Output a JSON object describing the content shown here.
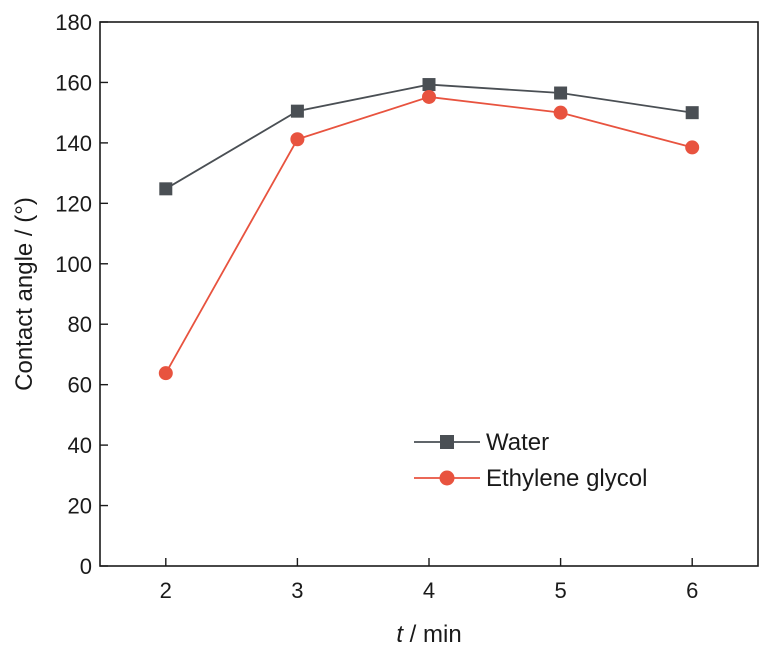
{
  "chart_data": {
    "type": "line",
    "x": [
      2,
      3,
      4,
      5,
      6
    ],
    "x_ticks": [
      "2",
      "3",
      "4",
      "5",
      "6"
    ],
    "y_ticks": [
      "0",
      "20",
      "40",
      "60",
      "80",
      "100",
      "120",
      "140",
      "160",
      "180"
    ],
    "xlim": [
      1.5,
      6.5
    ],
    "ylim": [
      0,
      180
    ],
    "xlabel_var": "t",
    "xlabel_unit": " / min",
    "ylabel": "Contact angle / (°)",
    "grid": false,
    "legend_position": "lower-right",
    "series": [
      {
        "name": "Water",
        "values": [
          124.8,
          150.5,
          159.3,
          156.5,
          150.0
        ],
        "color": "#4a4f54",
        "marker": "square"
      },
      {
        "name": "Ethylene glycol",
        "values": [
          63.8,
          141.2,
          155.2,
          150.0,
          138.5
        ],
        "color": "#e8533f",
        "marker": "circle"
      }
    ]
  }
}
